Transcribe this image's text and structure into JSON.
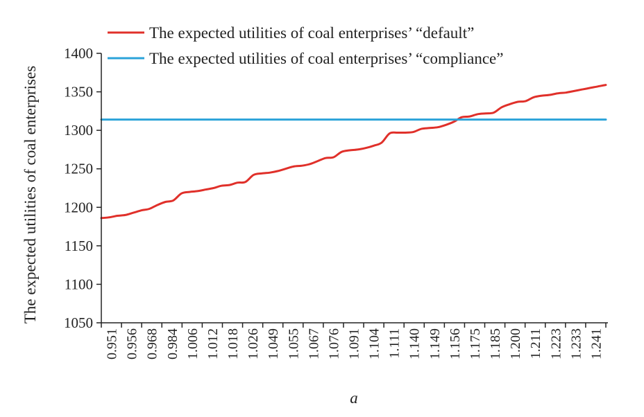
{
  "chart_data": {
    "type": "line",
    "xlabel": "a",
    "ylabel": "The expected utilities of coal enterprises",
    "ylim": [
      1050,
      1400
    ],
    "y_ticks": [
      1050,
      1100,
      1150,
      1200,
      1250,
      1300,
      1350,
      1400
    ],
    "x_tick_labels": [
      "0.951",
      "0.956",
      "0.968",
      "0.984",
      "1.006",
      "1.012",
      "1.018",
      "1.026",
      "1.049",
      "1.055",
      "1.067",
      "1.076",
      "1.091",
      "1.104",
      "1.111",
      "1.140",
      "1.149",
      "1.156",
      "1.175",
      "1.185",
      "1.200",
      "1.211",
      "1.223",
      "1.233",
      "1.241"
    ],
    "grid": false,
    "legend_position": "top",
    "series": [
      {
        "name": "The expected utilities of coal enterprises’ “default”",
        "color": "#e0302a",
        "values": [
          1186,
          1187,
          1189,
          1190,
          1193,
          1196,
          1198,
          1203,
          1207,
          1209,
          1218,
          1220,
          1221,
          1223,
          1225,
          1228,
          1229,
          1232,
          1233,
          1242,
          1244,
          1245,
          1247,
          1250,
          1253,
          1254,
          1256,
          1260,
          1264,
          1265,
          1272,
          1274,
          1275,
          1277,
          1280,
          1284,
          1296,
          1297,
          1297,
          1298,
          1302,
          1303,
          1304,
          1307,
          1311,
          1317,
          1318,
          1321,
          1322,
          1323,
          1330,
          1334,
          1337,
          1338,
          1343,
          1345,
          1346,
          1348,
          1349,
          1351,
          1353,
          1355,
          1357,
          1359
        ]
      },
      {
        "name": "The expected utilities of coal enterprises’ “compliance”",
        "color": "#2ba3d9",
        "values": [
          1314,
          1314,
          1314,
          1314,
          1314,
          1314,
          1314,
          1314,
          1314,
          1314,
          1314,
          1314,
          1314,
          1314,
          1314,
          1314,
          1314,
          1314,
          1314,
          1314,
          1314,
          1314,
          1314,
          1314,
          1314,
          1314,
          1314,
          1314,
          1314,
          1314,
          1314,
          1314,
          1314,
          1314,
          1314,
          1314,
          1314,
          1314,
          1314,
          1314,
          1314,
          1314,
          1314,
          1314,
          1314,
          1314,
          1314,
          1314,
          1314,
          1314,
          1314,
          1314,
          1314,
          1314,
          1314,
          1314,
          1314,
          1314,
          1314,
          1314,
          1314,
          1314,
          1314,
          1314
        ]
      }
    ]
  }
}
